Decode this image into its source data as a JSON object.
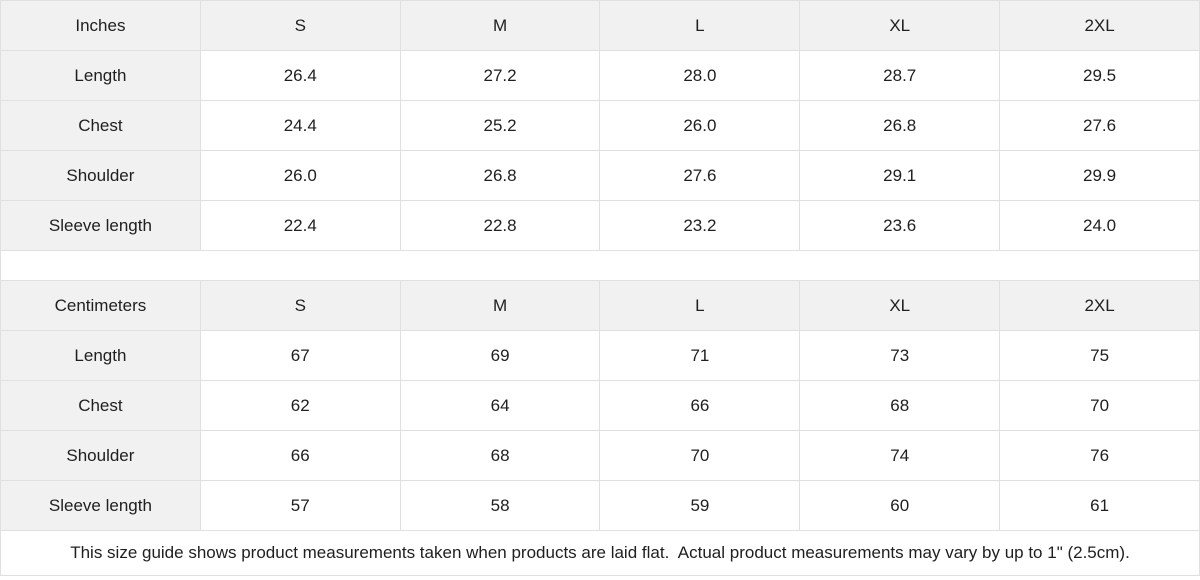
{
  "theme": {
    "border_color": "#e0e0e0",
    "header_bg": "#f1f1f1",
    "cell_bg": "#ffffff",
    "text_color": "#202020"
  },
  "chart_data": {
    "type": "table",
    "tables": [
      {
        "unit_label": "Inches",
        "sizes": [
          "S",
          "M",
          "L",
          "XL",
          "2XL"
        ],
        "rows": [
          {
            "label": "Length",
            "values": [
              "26.4",
              "27.2",
              "28.0",
              "28.7",
              "29.5"
            ]
          },
          {
            "label": "Chest",
            "values": [
              "24.4",
              "25.2",
              "26.0",
              "26.8",
              "27.6"
            ]
          },
          {
            "label": "Shoulder",
            "values": [
              "26.0",
              "26.8",
              "27.6",
              "29.1",
              "29.9"
            ]
          },
          {
            "label": "Sleeve length",
            "values": [
              "22.4",
              "22.8",
              "23.2",
              "23.6",
              "24.0"
            ]
          }
        ]
      },
      {
        "unit_label": "Centimeters",
        "sizes": [
          "S",
          "M",
          "L",
          "XL",
          "2XL"
        ],
        "rows": [
          {
            "label": "Length",
            "values": [
              "67",
              "69",
              "71",
              "73",
              "75"
            ]
          },
          {
            "label": "Chest",
            "values": [
              "62",
              "64",
              "66",
              "68",
              "70"
            ]
          },
          {
            "label": "Shoulder",
            "values": [
              "66",
              "68",
              "70",
              "74",
              "76"
            ]
          },
          {
            "label": "Sleeve length",
            "values": [
              "57",
              "58",
              "59",
              "60",
              "61"
            ]
          }
        ]
      }
    ]
  },
  "footer": {
    "note": "This size guide shows product measurements taken when products are laid flat.  Actual product measurements may vary by up to 1\" (2.5cm)."
  }
}
